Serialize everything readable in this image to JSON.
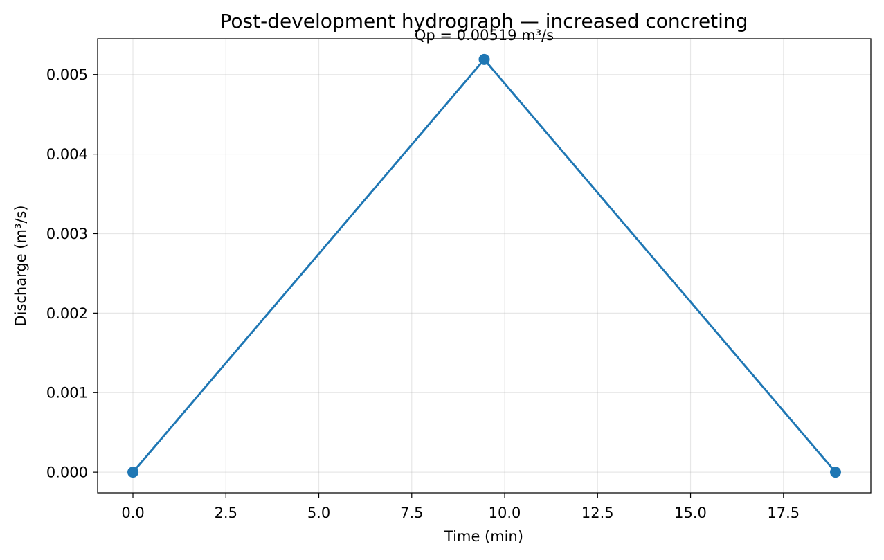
{
  "chart_data": {
    "type": "line",
    "title": "Post-development hydrograph — increased concreting",
    "xlabel": "Time (min)",
    "ylabel": "Discharge (m³/s)",
    "xlim": [
      -0.95,
      19.85
    ],
    "ylim": [
      -0.00026,
      0.00545
    ],
    "x_ticks": [
      0.0,
      2.5,
      5.0,
      7.5,
      10.0,
      12.5,
      15.0,
      17.5
    ],
    "x_tick_labels": [
      "0.0",
      "2.5",
      "5.0",
      "7.5",
      "10.0",
      "12.5",
      "15.0",
      "17.5"
    ],
    "y_ticks": [
      0.0,
      0.001,
      0.002,
      0.003,
      0.004,
      0.005
    ],
    "y_tick_labels": [
      "0.000",
      "0.001",
      "0.002",
      "0.003",
      "0.004",
      "0.005"
    ],
    "grid": true,
    "legend": "none",
    "series": [
      {
        "x": [
          0.0,
          9.45,
          18.9
        ],
        "y": [
          0.0,
          0.00519,
          0.0
        ],
        "color": "#1f77b4",
        "marker": "circle"
      }
    ],
    "annotations": [
      {
        "text": "Qp = 0.00519 m³/s",
        "x": 9.45,
        "y": 0.00519
      }
    ]
  }
}
